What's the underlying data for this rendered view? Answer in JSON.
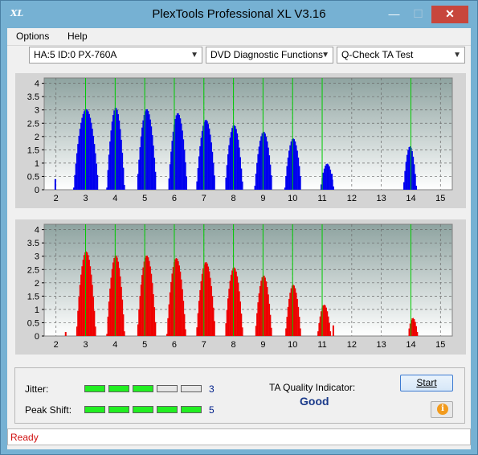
{
  "window": {
    "title": "PlexTools Professional XL V3.16",
    "icon_text": "XL",
    "min_glyph": "—",
    "max_glyph": "☐",
    "close_glyph": "✕"
  },
  "menu": {
    "items": [
      "Options",
      "Help"
    ]
  },
  "toolbar": {
    "drive": "HA:5 ID:0  PX-760A",
    "function": "DVD Diagnostic Functions",
    "test": "Q-Check TA Test",
    "arrow": "▼"
  },
  "colors": {
    "upper_bars": "#0000ee",
    "lower_bars": "#ee0000",
    "peak_lines": "#00cc00"
  },
  "chart_data": [
    {
      "type": "bar",
      "series_name": "",
      "x_ticks": [
        2,
        3,
        4,
        5,
        6,
        7,
        8,
        9,
        10,
        11,
        12,
        13,
        14,
        15
      ],
      "y_ticks": [
        0,
        0.5,
        1,
        1.5,
        2,
        2.5,
        3,
        3.5,
        4
      ],
      "xlim": [
        1.6,
        15.4
      ],
      "ylim": [
        0,
        4.2
      ],
      "peak_lines": [
        3,
        4,
        5,
        6,
        7,
        8,
        9,
        10,
        11,
        14
      ],
      "peaks": [
        {
          "center": 3.0,
          "height": 2.95,
          "width": 0.42
        },
        {
          "center": 4.0,
          "height": 3.0,
          "width": 0.3
        },
        {
          "center": 5.05,
          "height": 2.95,
          "width": 0.33
        },
        {
          "center": 6.1,
          "height": 2.8,
          "width": 0.32
        },
        {
          "center": 7.05,
          "height": 2.55,
          "width": 0.32
        },
        {
          "center": 8.0,
          "height": 2.35,
          "width": 0.3
        },
        {
          "center": 9.0,
          "height": 2.1,
          "width": 0.3
        },
        {
          "center": 10.0,
          "height": 1.85,
          "width": 0.28
        },
        {
          "center": 11.15,
          "height": 0.9,
          "width": 0.22
        },
        {
          "center": 13.95,
          "height": 1.55,
          "width": 0.22
        }
      ],
      "extra_bars": [
        {
          "x": 1.95,
          "y": 0.4
        },
        {
          "x": 11.3,
          "y": 0.6
        }
      ]
    },
    {
      "type": "bar",
      "series_name": "",
      "x_ticks": [
        2,
        3,
        4,
        5,
        6,
        7,
        8,
        9,
        10,
        11,
        12,
        13,
        14,
        15
      ],
      "y_ticks": [
        0,
        0.5,
        1,
        1.5,
        2,
        2.5,
        3,
        3.5,
        4
      ],
      "xlim": [
        1.6,
        15.4
      ],
      "ylim": [
        0,
        4.2
      ],
      "peak_lines": [
        3,
        4,
        5,
        6,
        7,
        8,
        9,
        10,
        11,
        14
      ],
      "peaks": [
        {
          "center": 3.0,
          "height": 3.1,
          "width": 0.33
        },
        {
          "center": 4.0,
          "height": 2.95,
          "width": 0.3
        },
        {
          "center": 5.05,
          "height": 2.95,
          "width": 0.32
        },
        {
          "center": 6.05,
          "height": 2.85,
          "width": 0.32
        },
        {
          "center": 7.05,
          "height": 2.7,
          "width": 0.32
        },
        {
          "center": 8.0,
          "height": 2.5,
          "width": 0.3
        },
        {
          "center": 9.0,
          "height": 2.2,
          "width": 0.28
        },
        {
          "center": 10.0,
          "height": 1.85,
          "width": 0.26
        },
        {
          "center": 11.05,
          "height": 1.1,
          "width": 0.22
        },
        {
          "center": 14.05,
          "height": 0.6,
          "width": 0.16
        }
      ],
      "extra_bars": [
        {
          "x": 2.3,
          "y": 0.15
        },
        {
          "x": 11.35,
          "y": 0.4
        }
      ]
    }
  ],
  "metrics": {
    "jitter_label": "Jitter:",
    "jitter_value": "3",
    "jitter_level": 3,
    "peak_shift_label": "Peak Shift:",
    "peak_shift_value": "5",
    "peak_shift_level": 5,
    "segments": 5
  },
  "quality": {
    "label": "TA Quality Indicator:",
    "value": "Good"
  },
  "buttons": {
    "start": "Start",
    "info_glyph": "i"
  },
  "status": {
    "text": "Ready"
  }
}
